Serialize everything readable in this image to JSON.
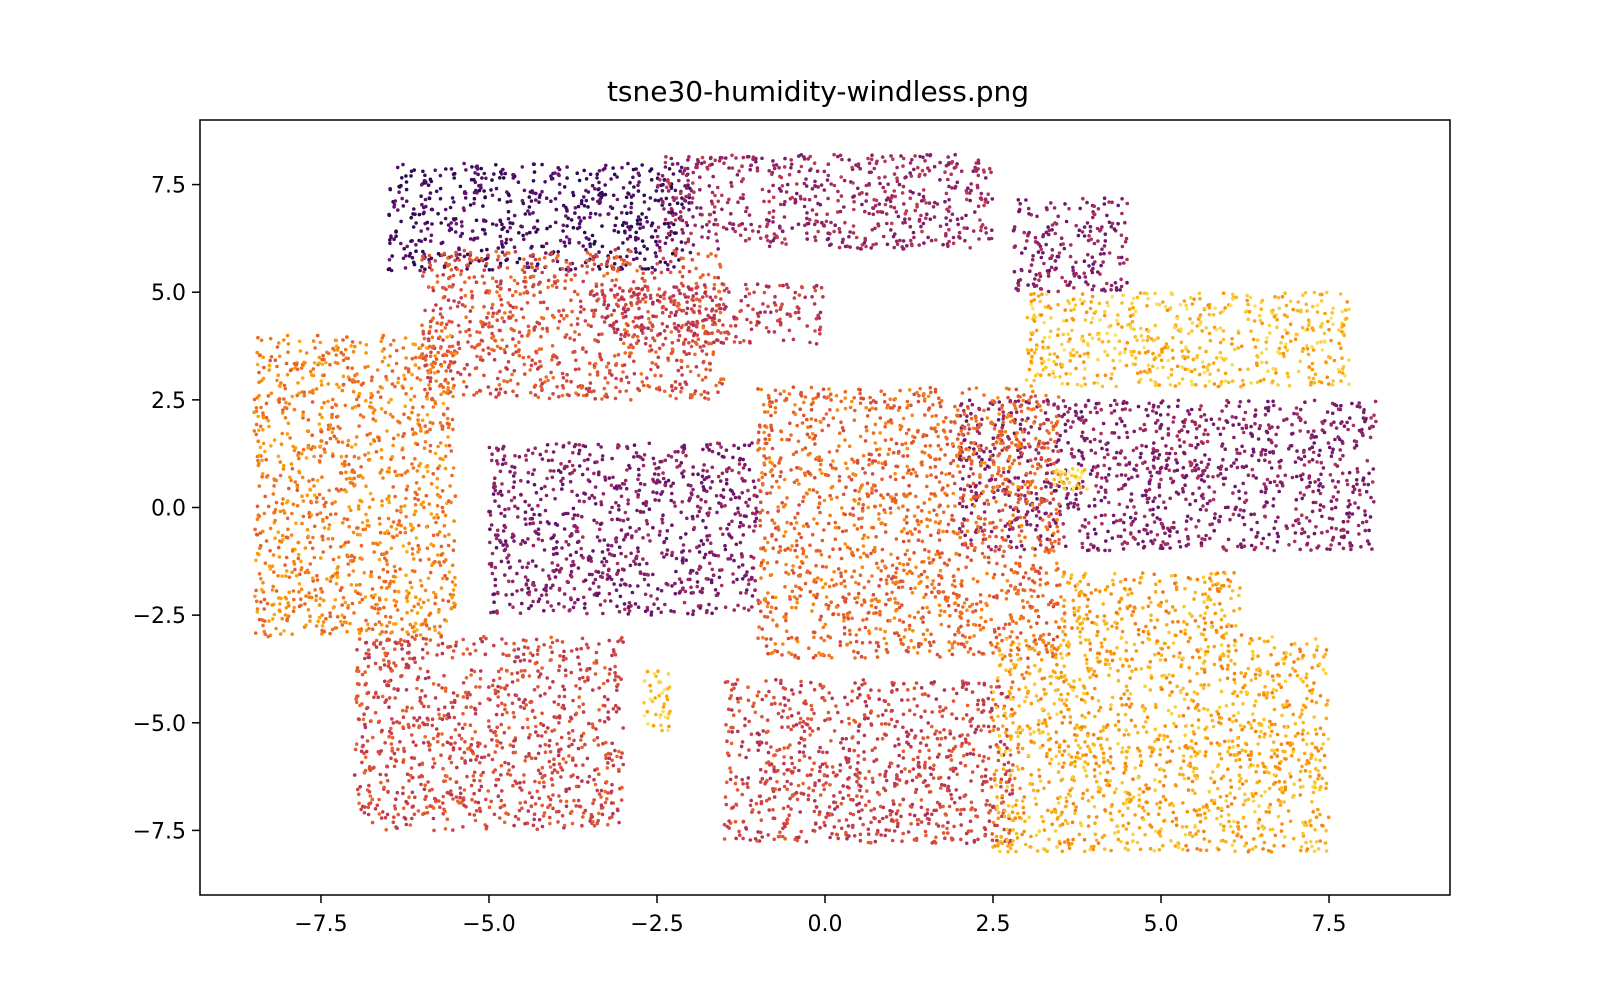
{
  "chart_data": {
    "type": "scatter",
    "title": "tsne30-humidity-windless.png",
    "xlabel": "",
    "ylabel": "",
    "xlim": [
      -9.3,
      9.3
    ],
    "ylim": [
      -9.0,
      9.0
    ],
    "xticks": [
      -7.5,
      -5.0,
      -2.5,
      0.0,
      2.5,
      5.0,
      7.5
    ],
    "yticks": [
      -7.5,
      -5.0,
      -2.5,
      0.0,
      2.5,
      5.0,
      7.5
    ],
    "xtick_labels": [
      "−7.5",
      "−5.0",
      "−2.5",
      "0.0",
      "2.5",
      "5.0",
      "7.5"
    ],
    "ytick_labels": [
      "−7.5",
      "−5.0",
      "−2.5",
      "0.0",
      "2.5",
      "5.0",
      "7.5"
    ],
    "grid": false,
    "colormap": "inferno",
    "colormap_stops": [
      "#1b0c41",
      "#4a0c6b",
      "#781c6d",
      "#a52c60",
      "#cf4446",
      "#ed6925",
      "#fb9b06",
      "#f7d13d",
      "#fcffa4"
    ],
    "clusters": [
      {
        "region": "top-left arc",
        "x_range": [
          -6.5,
          -2.0
        ],
        "y_range": [
          5.5,
          8.0
        ],
        "humidity": 0.12
      },
      {
        "region": "top-center band",
        "x_range": [
          -2.5,
          2.5
        ],
        "y_range": [
          6.0,
          8.2
        ],
        "humidity": 0.35
      },
      {
        "region": "top-right spur",
        "x_range": [
          2.8,
          4.5
        ],
        "y_range": [
          5.0,
          7.2
        ],
        "humidity": 0.3
      },
      {
        "region": "upper-left lobe",
        "x_range": [
          -6.0,
          -1.5
        ],
        "y_range": [
          2.5,
          6.0
        ],
        "humidity": 0.55
      },
      {
        "region": "upper-middle band",
        "x_range": [
          -3.5,
          0.0
        ],
        "y_range": [
          3.8,
          5.2
        ],
        "humidity": 0.45
      },
      {
        "region": "right-upper yellow arm",
        "x_range": [
          3.0,
          7.8
        ],
        "y_range": [
          2.8,
          5.0
        ],
        "humidity": 0.82
      },
      {
        "region": "center-right purple band",
        "x_range": [
          2.0,
          8.2
        ],
        "y_range": [
          -1.0,
          2.5
        ],
        "humidity": 0.3
      },
      {
        "region": "left outer ring",
        "x_range": [
          -8.5,
          -5.5
        ],
        "y_range": [
          -3.0,
          4.0
        ],
        "humidity": 0.68
      },
      {
        "region": "center-left purple blob",
        "x_range": [
          -5.0,
          -1.0
        ],
        "y_range": [
          -2.5,
          1.5
        ],
        "humidity": 0.28
      },
      {
        "region": "central orange mass",
        "x_range": [
          -1.0,
          3.5
        ],
        "y_range": [
          -3.5,
          2.8
        ],
        "humidity": 0.62
      },
      {
        "region": "lower-right orange arm",
        "x_range": [
          3.5,
          6.2
        ],
        "y_range": [
          -3.0,
          -1.5
        ],
        "humidity": 0.75
      },
      {
        "region": "lower-left ring",
        "x_range": [
          -7.0,
          -3.0
        ],
        "y_range": [
          -7.5,
          -3.0
        ],
        "humidity": 0.52
      },
      {
        "region": "lower-center blob",
        "x_range": [
          -1.5,
          2.8
        ],
        "y_range": [
          -7.8,
          -4.0
        ],
        "humidity": 0.5
      },
      {
        "region": "bottom-right yellow arc",
        "x_range": [
          2.5,
          7.5
        ],
        "y_range": [
          -8.0,
          -3.0
        ],
        "humidity": 0.78
      },
      {
        "region": "small yellow blob",
        "x_range": [
          3.4,
          3.9
        ],
        "y_range": [
          0.4,
          0.9
        ],
        "humidity": 0.9
      },
      {
        "region": "small yellow streak",
        "x_range": [
          -2.7,
          -2.3
        ],
        "y_range": [
          -5.2,
          -3.8
        ],
        "humidity": 0.85
      }
    ]
  }
}
